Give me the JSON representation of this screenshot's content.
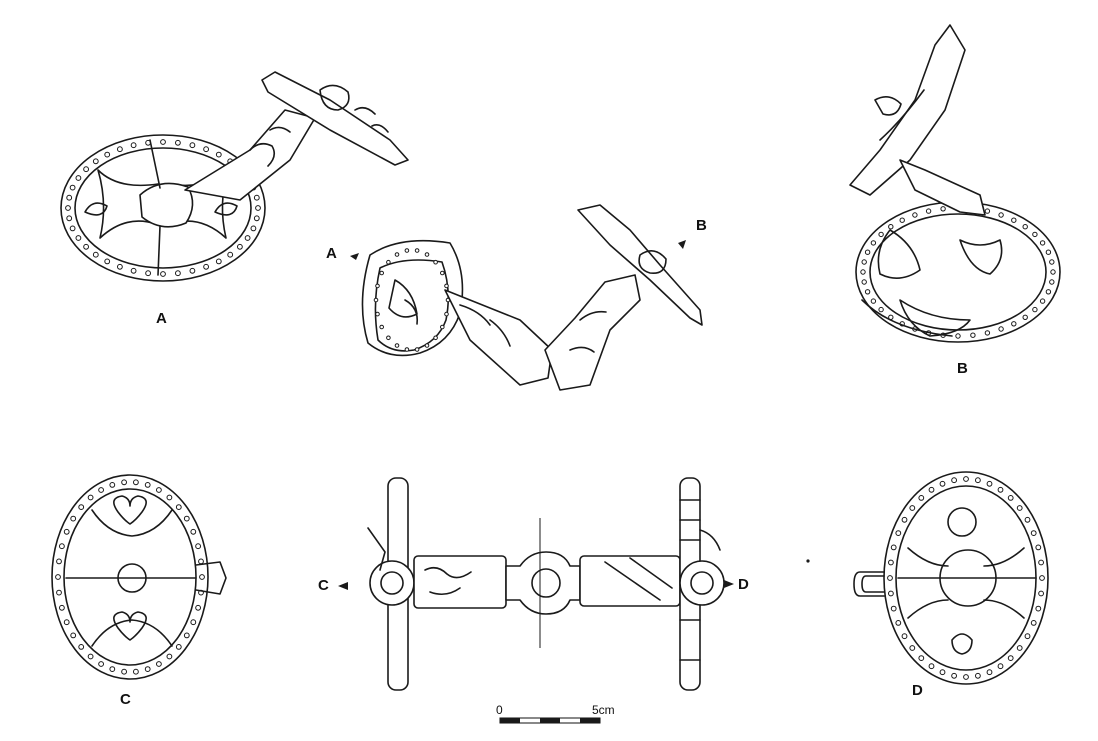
{
  "figure": {
    "labels": {
      "A_main": "A",
      "B_main": "B",
      "C_main": "C",
      "D_main": "D",
      "A_pointer": "A",
      "B_pointer": "B",
      "C_pointer": "C",
      "D_pointer": "D"
    },
    "scale": {
      "start": "0",
      "end": "5cm"
    }
  }
}
